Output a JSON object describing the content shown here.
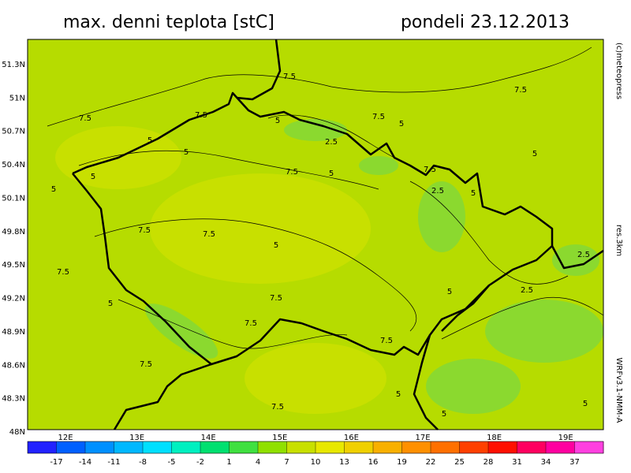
{
  "header": {
    "title": "max. denni teplota [stC]",
    "date": "pondeli 23.12.2013"
  },
  "lat_labels": [
    "51.3N",
    "51N",
    "50.7N",
    "50.4N",
    "50.1N",
    "49.8N",
    "49.5N",
    "49.2N",
    "48.9N",
    "48.6N",
    "48.3N",
    "48N"
  ],
  "lon_labels": [
    "12E",
    "13E",
    "14E",
    "15E",
    "16E",
    "17E",
    "18E",
    "19E"
  ],
  "side_texts": [
    "(c)meteopress",
    "res.3km",
    "WRFv3.1-NMM-A"
  ],
  "colorbar": {
    "ticks": [
      -17,
      -14,
      -11,
      -8,
      -5,
      -2,
      1,
      4,
      7,
      10,
      13,
      16,
      19,
      22,
      25,
      28,
      31,
      34,
      37
    ],
    "colors": [
      "#2222ff",
      "#0060ff",
      "#0090ff",
      "#00b8ff",
      "#00e0ff",
      "#00f0c0",
      "#00e070",
      "#40e040",
      "#90e000",
      "#c8e000",
      "#e8e800",
      "#f0d000",
      "#f8b000",
      "#ff9000",
      "#ff7000",
      "#ff4000",
      "#ff1000",
      "#ff0060",
      "#ff00a0",
      "#ff40e0"
    ]
  },
  "contour_labels": [
    "7.5",
    "7.5",
    "5",
    "7.5",
    "5",
    "2.5",
    "7.5",
    "5",
    "7.5",
    "5",
    "5",
    "7.5",
    "5",
    "5",
    "2.5",
    "5",
    "7.5",
    "7.5",
    "5",
    "7.5",
    "5",
    "7.5",
    "5",
    "2.5",
    "7.5",
    "5",
    "7.5",
    "7.5",
    "5",
    "7.5",
    "7.5",
    "5",
    "5",
    "2.5"
  ]
}
